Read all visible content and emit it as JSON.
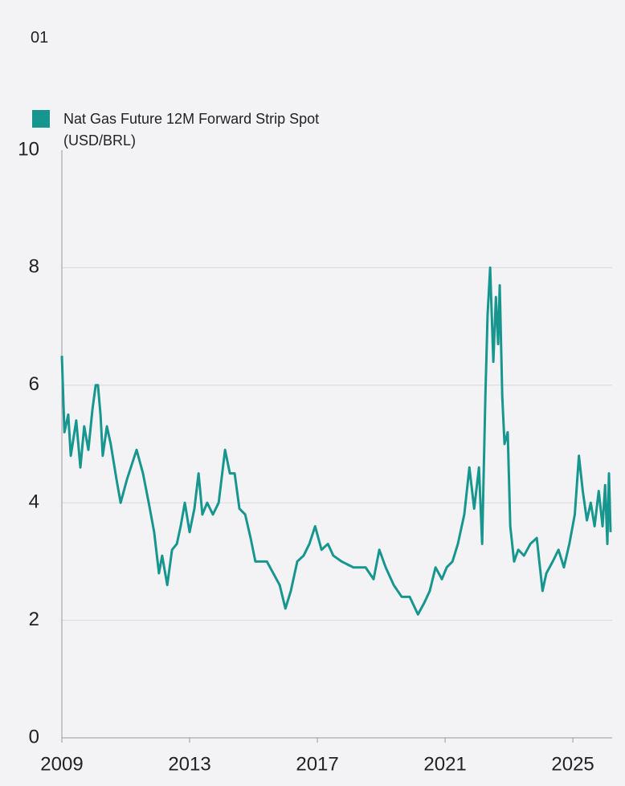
{
  "chart_data": {
    "type": "line",
    "title": "01",
    "xlim": [
      2009,
      2026.23
    ],
    "xticks": [
      2009,
      2013,
      2017,
      2021,
      2025
    ],
    "ylim": [
      0,
      10
    ],
    "yticks": [
      0,
      2,
      4,
      6,
      8,
      10
    ],
    "grid": true,
    "legend": "top-left",
    "x": [
      2009.0,
      2009.08,
      2009.2,
      2009.28,
      2009.45,
      2009.58,
      2009.7,
      2009.83,
      2009.96,
      2010.06,
      2010.13,
      2010.21,
      2010.28,
      2010.41,
      2010.53,
      2010.71,
      2010.84,
      2011.04,
      2011.16,
      2011.34,
      2011.54,
      2011.72,
      2011.89,
      2012.04,
      2012.14,
      2012.3,
      2012.45,
      2012.6,
      2012.72,
      2012.85,
      2013.0,
      2013.15,
      2013.28,
      2013.4,
      2013.55,
      2013.73,
      2013.91,
      2014.11,
      2014.26,
      2014.41,
      2014.56,
      2014.74,
      2014.91,
      2015.06,
      2015.24,
      2015.42,
      2015.62,
      2015.82,
      2016.0,
      2016.17,
      2016.37,
      2016.57,
      2016.75,
      2016.93,
      2017.13,
      2017.33,
      2017.5,
      2017.76,
      2018.13,
      2018.51,
      2018.76,
      2018.94,
      2019.14,
      2019.39,
      2019.64,
      2019.89,
      2020.15,
      2020.35,
      2020.52,
      2020.7,
      2020.9,
      2021.05,
      2021.23,
      2021.4,
      2021.6,
      2021.76,
      2021.91,
      2022.06,
      2022.16,
      2022.26,
      2022.33,
      2022.41,
      2022.51,
      2022.59,
      2022.66,
      2022.71,
      2022.79,
      2022.86,
      2022.96,
      2023.04,
      2023.16,
      2023.29,
      2023.47,
      2023.67,
      2023.87,
      2024.05,
      2024.17,
      2024.37,
      2024.55,
      2024.72,
      2024.89,
      2025.06,
      2025.19,
      2025.31,
      2025.44,
      2025.56,
      2025.68,
      2025.81,
      2025.93,
      2026.01,
      2026.08,
      2026.13,
      2026.18
    ],
    "series": [
      {
        "name": "Nat Gas Future 12M Forward Strip Spot (USD/BRL)",
        "color": "#17968f",
        "values": [
          6.5,
          5.2,
          5.5,
          4.8,
          5.4,
          4.6,
          5.3,
          4.9,
          5.6,
          6.0,
          6.0,
          5.5,
          4.8,
          5.3,
          5.0,
          4.4,
          4.0,
          4.4,
          4.6,
          4.9,
          4.5,
          4.0,
          3.5,
          2.8,
          3.1,
          2.6,
          3.2,
          3.3,
          3.6,
          4.0,
          3.5,
          3.9,
          4.5,
          3.8,
          4.0,
          3.8,
          4.0,
          4.9,
          4.5,
          4.5,
          3.9,
          3.8,
          3.4,
          3.0,
          3.0,
          3.0,
          2.8,
          2.6,
          2.2,
          2.5,
          3.0,
          3.1,
          3.3,
          3.6,
          3.2,
          3.3,
          3.1,
          3.0,
          2.9,
          2.9,
          2.7,
          3.2,
          2.9,
          2.6,
          2.4,
          2.4,
          2.1,
          2.3,
          2.5,
          2.9,
          2.7,
          2.9,
          3.0,
          3.3,
          3.8,
          4.6,
          3.9,
          4.6,
          3.3,
          5.8,
          7.2,
          8.0,
          6.4,
          7.5,
          6.7,
          7.7,
          5.8,
          5.0,
          5.2,
          3.6,
          3.0,
          3.2,
          3.1,
          3.3,
          3.4,
          2.5,
          2.8,
          3.0,
          3.2,
          2.9,
          3.3,
          3.8,
          4.8,
          4.2,
          3.7,
          4.0,
          3.6,
          4.2,
          3.6,
          4.3,
          3.3,
          4.5,
          3.5
        ]
      }
    ]
  }
}
